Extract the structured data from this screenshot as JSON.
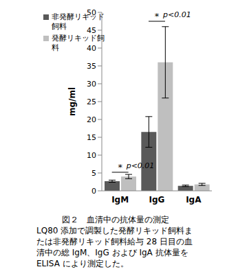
{
  "chart_data": {
    "type": "bar",
    "title": "図２　血清中の抗体量の測定",
    "caption": "LQ80 添加で調製した発酵リキッド飼料または非発酵リキッド飼料給与 28 日目の血清中の総 IgM、IgG および IgA 抗体量を ELISA により測定した。",
    "y_label": "mg/ml",
    "categories": [
      "IgM",
      "IgG",
      "IgA"
    ],
    "series": [
      {
        "name": "非発酵リキッド飼料",
        "color": "#595959",
        "values": [
          2.7,
          16.5,
          1.4
        ],
        "errors": [
          0.3,
          4.3,
          0.2
        ]
      },
      {
        "name": "発酵リキッド飼料",
        "color": "#bfbfbf",
        "values": [
          4.0,
          36.0,
          1.8
        ],
        "errors": [
          0.6,
          10.0,
          0.3
        ]
      }
    ],
    "ylim": [
      0,
      50
    ],
    "yticks": [
      0,
      5,
      10,
      15,
      20,
      25,
      30,
      35,
      40,
      45,
      50
    ],
    "grid": false,
    "legend": "upper left",
    "annotations": [
      {
        "category": "IgM",
        "y": 5.2,
        "text": "*",
        "label": "p<0.01"
      },
      {
        "category": "IgG",
        "y": 47.5,
        "text": "*",
        "label": "p<0.01"
      }
    ]
  }
}
